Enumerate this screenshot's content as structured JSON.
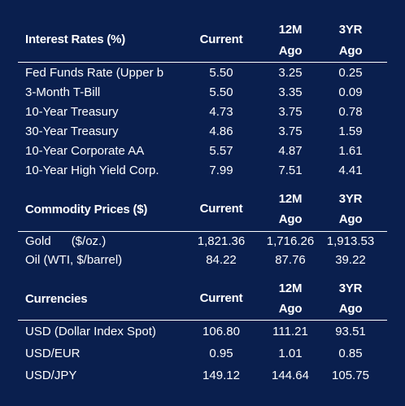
{
  "interest_rates": {
    "title": "Interest Rates (%)",
    "headers": {
      "c1": "Current",
      "c2a": "12M",
      "c2b": "Ago",
      "c3a": "3YR",
      "c3b": "Ago"
    },
    "rows": [
      {
        "label": "Fed Funds Rate (Upper b",
        "current": "5.50",
        "m12": "3.25",
        "yr3": "0.25"
      },
      {
        "label": "3-Month T-Bill",
        "current": "5.50",
        "m12": "3.35",
        "yr3": "0.09"
      },
      {
        "label": "10-Year Treasury",
        "current": "4.73",
        "m12": "3.75",
        "yr3": "0.78"
      },
      {
        "label": "30-Year Treasury",
        "current": "4.86",
        "m12": "3.75",
        "yr3": "1.59"
      },
      {
        "label": "10-Year Corporate AA",
        "current": "5.57",
        "m12": "4.87",
        "yr3": "1.61"
      },
      {
        "label": "10-Year High Yield Corp.",
        "current": "7.99",
        "m12": "7.51",
        "yr3": "4.41"
      }
    ]
  },
  "commodities": {
    "title": "Commodity Prices ($)",
    "headers": {
      "c1": "Current",
      "c2a": "12M",
      "c2b": "Ago",
      "c3a": "3YR",
      "c3b": "Ago"
    },
    "rows": [
      {
        "label": "Gold      ($/oz.)",
        "current": "1,821.36",
        "m12": "1,716.26",
        "yr3": "1,913.53"
      },
      {
        "label": "Oil (WTI, $/barrel)",
        "current": "84.22",
        "m12": "87.76",
        "yr3": "39.22"
      }
    ]
  },
  "currencies": {
    "title": "Currencies",
    "headers": {
      "c1": "Current",
      "c2a": "12M",
      "c2b": "Ago",
      "c3a": "3YR",
      "c3b": "Ago"
    },
    "rows": [
      {
        "label": "USD (Dollar Index Spot)",
        "current": "106.80",
        "m12": "111.21",
        "yr3": "93.51"
      },
      {
        "label": "USD/EUR",
        "current": "0.95",
        "m12": "1.01",
        "yr3": "0.85"
      },
      {
        "label": "USD/JPY",
        "current": "149.12",
        "m12": "144.64",
        "yr3": "105.75"
      }
    ]
  }
}
